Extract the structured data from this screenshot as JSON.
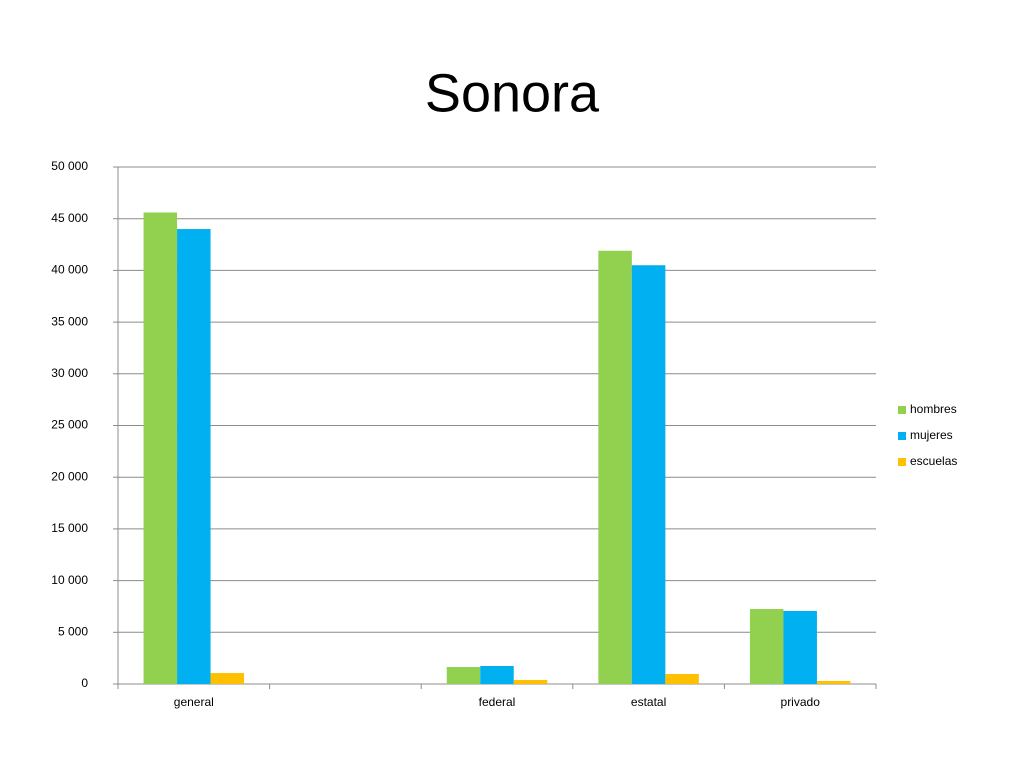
{
  "chart_data": {
    "type": "bar",
    "title": "Sonora",
    "categories": [
      "general",
      null,
      "federal",
      "estatal",
      "privado"
    ],
    "series": [
      {
        "name": "hombres",
        "color": "#92d050",
        "values": [
          45600,
          null,
          1640,
          41900,
          7250
        ]
      },
      {
        "name": "mujeres",
        "color": "#00b0f0",
        "values": [
          44000,
          null,
          1740,
          40500,
          7060
        ]
      },
      {
        "name": "escuelas",
        "color": "#ffc000",
        "values": [
          1060,
          null,
          390,
          970,
          290
        ]
      }
    ],
    "ylim": [
      0,
      50000
    ],
    "yticks": [
      0,
      {
        "value": 5000,
        "label": "5 000"
      },
      {
        "value": 10000,
        "label": "10 000"
      },
      {
        "value": 15000,
        "label": "15 000"
      },
      {
        "value": 20000,
        "label": "20 000"
      },
      {
        "value": 25000,
        "label": "25 000"
      },
      {
        "value": 30000,
        "label": "30 000"
      },
      {
        "value": 35000,
        "label": "35 000"
      },
      {
        "value": 40000,
        "label": "40 000"
      },
      {
        "value": 45000,
        "label": "45 000"
      },
      {
        "value": 50000,
        "label": "50 000"
      }
    ],
    "grid": true,
    "legend": "right"
  }
}
